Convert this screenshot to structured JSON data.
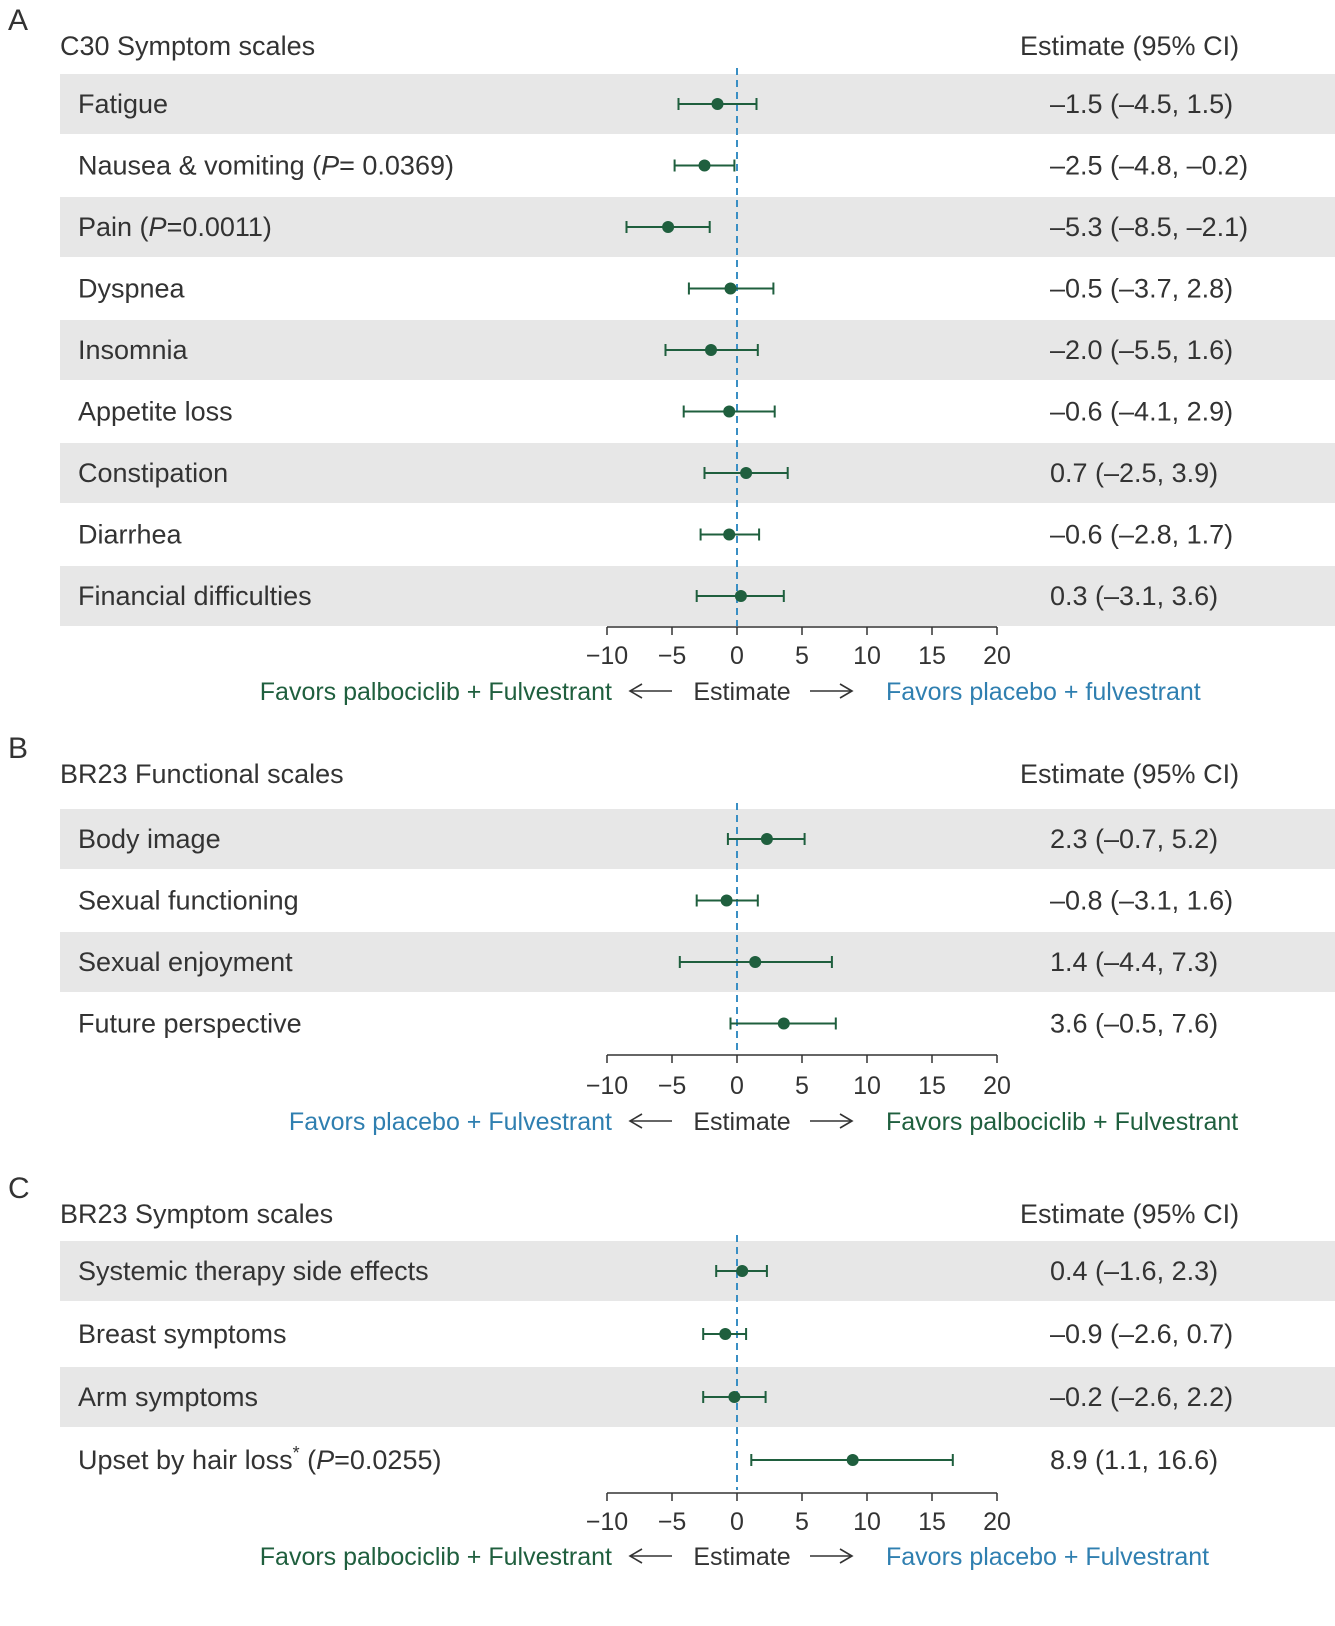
{
  "colors": {
    "green": "#1f5f3e",
    "blue": "#2f7fb0",
    "text": "#333333",
    "band": "#e7e7e7",
    "dashed": "#3a8fc4",
    "axis": "#333333"
  },
  "chart_data": [
    {
      "type": "forest",
      "panel_letter": "A",
      "title": "C30 Symptom scales",
      "estimate_header": "Estimate (95% CI)",
      "xlim": [
        -10,
        20
      ],
      "xticks": [
        -10,
        -5,
        0,
        5,
        10,
        15,
        20
      ],
      "reference_line": 0,
      "rows": [
        {
          "label": "Fatigue",
          "p": "",
          "ci_text": "–1.5 (–4.5, 1.5)",
          "est": -1.5,
          "lo": -4.5,
          "hi": 1.5
        },
        {
          "label": "Nausea & vomiting (",
          "p": "P",
          "p_val": "= 0.0369)",
          "ci_text": "–2.5 (–4.8, –0.2)",
          "est": -2.5,
          "lo": -4.8,
          "hi": -0.2
        },
        {
          "label": "Pain (",
          "p": "P",
          "p_val": "=0.0011)",
          "ci_text": "–5.3 (–8.5, –2.1)",
          "est": -5.3,
          "lo": -8.5,
          "hi": -2.1
        },
        {
          "label": "Dyspnea",
          "p": "",
          "ci_text": "–0.5 (–3.7, 2.8)",
          "est": -0.5,
          "lo": -3.7,
          "hi": 2.8
        },
        {
          "label": "Insomnia",
          "p": "",
          "ci_text": "–2.0 (–5.5, 1.6)",
          "est": -2.0,
          "lo": -5.5,
          "hi": 1.6
        },
        {
          "label": "Appetite loss",
          "p": "",
          "ci_text": "–0.6 (–4.1, 2.9)",
          "est": -0.6,
          "lo": -4.1,
          "hi": 2.9
        },
        {
          "label": "Constipation",
          "p": "",
          "ci_text": "0.7 (–2.5, 3.9)",
          "est": 0.7,
          "lo": -2.5,
          "hi": 3.9
        },
        {
          "label": "Diarrhea",
          "p": "",
          "ci_text": "–0.6 (–2.8, 1.7)",
          "est": -0.6,
          "lo": -2.8,
          "hi": 1.7
        },
        {
          "label": "Financial difficulties",
          "p": "",
          "ci_text": "0.3 (–3.1, 3.6)",
          "est": 0.3,
          "lo": -3.1,
          "hi": 3.6
        }
      ],
      "xlabel": "Estimate",
      "favors_left": "Favors palbociclib + Fulvestrant",
      "favors_right": "Favors placebo + fulvestrant",
      "favors_left_color": "green",
      "favors_right_color": "blue"
    },
    {
      "type": "forest",
      "panel_letter": "B",
      "title": "BR23 Functional scales",
      "estimate_header": "Estimate (95% CI)",
      "xlim": [
        -10,
        20
      ],
      "xticks": [
        -10,
        -5,
        0,
        5,
        10,
        15,
        20
      ],
      "reference_line": 0,
      "rows": [
        {
          "label": "Body image",
          "p": "",
          "ci_text": "2.3 (–0.7, 5.2)",
          "est": 2.3,
          "lo": -0.7,
          "hi": 5.2
        },
        {
          "label": "Sexual functioning",
          "p": "",
          "ci_text": "–0.8 (–3.1, 1.6)",
          "est": -0.8,
          "lo": -3.1,
          "hi": 1.6
        },
        {
          "label": "Sexual enjoyment",
          "p": "",
          "ci_text": "1.4 (–4.4, 7.3)",
          "est": 1.4,
          "lo": -4.4,
          "hi": 7.3
        },
        {
          "label": "Future perspective",
          "p": "",
          "ci_text": "3.6 (–0.5, 7.6)",
          "est": 3.6,
          "lo": -0.5,
          "hi": 7.6
        }
      ],
      "xlabel": "Estimate",
      "favors_left": "Favors placebo + Fulvestrant",
      "favors_right": "Favors palbociclib + Fulvestrant",
      "favors_left_color": "blue",
      "favors_right_color": "green"
    },
    {
      "type": "forest",
      "panel_letter": "C",
      "title": "BR23 Symptom scales",
      "estimate_header": "Estimate (95% CI)",
      "xlim": [
        -10,
        20
      ],
      "xticks": [
        -10,
        -5,
        0,
        5,
        10,
        15,
        20
      ],
      "reference_line": 0,
      "rows": [
        {
          "label": "Systemic therapy side effects",
          "p": "",
          "ci_text": "0.4 (–1.6, 2.3)",
          "est": 0.4,
          "lo": -1.6,
          "hi": 2.3
        },
        {
          "label": "Breast symptoms",
          "p": "",
          "ci_text": "–0.9 (–2.6, 0.7)",
          "est": -0.9,
          "lo": -2.6,
          "hi": 0.7
        },
        {
          "label": "Arm symptoms",
          "p": "",
          "ci_text": "–0.2 (–2.6, 2.2)",
          "est": -0.2,
          "lo": -2.6,
          "hi": 2.2
        },
        {
          "label": "Upset by hair loss",
          "star": "*",
          "p": "P",
          "p_val": "=0.0255)",
          "p_prefix": " (",
          "ci_text": "8.9 (1.1, 16.6)",
          "est": 8.9,
          "lo": 1.1,
          "hi": 16.6
        }
      ],
      "xlabel": "Estimate",
      "favors_left": "Favors palbociclib + Fulvestrant",
      "favors_right": "Favors placebo + Fulvestrant",
      "favors_left_color": "green",
      "favors_right_color": "blue"
    }
  ]
}
